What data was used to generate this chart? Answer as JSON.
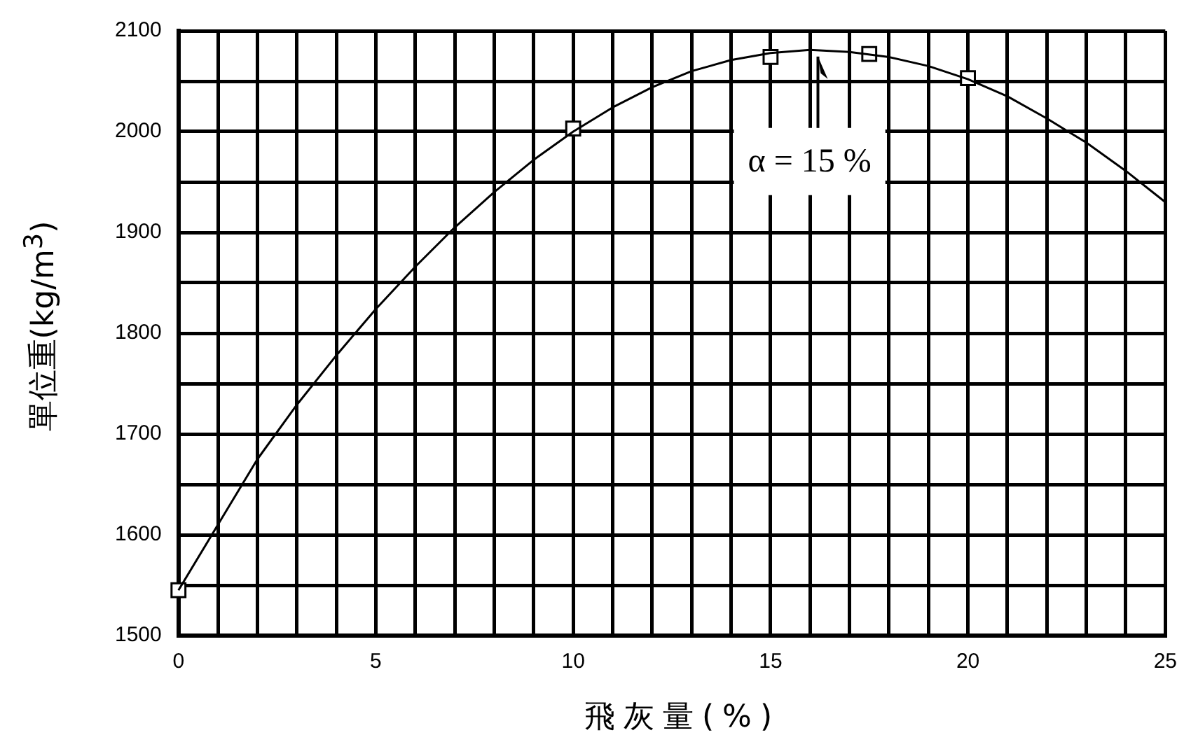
{
  "chart_data": {
    "type": "line",
    "xlabel": "飛灰量(%)",
    "ylabel": "單位重(kg/m$^{3}$)",
    "xlim": [
      0,
      25
    ],
    "ylim": [
      1500,
      2100
    ],
    "xticks": [
      0,
      {
        "value": 1,
        "label": null
      },
      {
        "value": 2,
        "label": null
      },
      {
        "value": 3,
        "label": null
      },
      {
        "value": 4,
        "label": null
      },
      5,
      {
        "value": 6,
        "label": null
      },
      {
        "value": 7,
        "label": null
      },
      {
        "value": 8,
        "label": null
      },
      {
        "value": 9,
        "label": null
      },
      10,
      {
        "value": 11,
        "label": null
      },
      {
        "value": 12,
        "label": null
      },
      {
        "value": 13,
        "label": null
      },
      {
        "value": 14,
        "label": null
      },
      15,
      {
        "value": 16,
        "label": null
      },
      {
        "value": 17,
        "label": null
      },
      {
        "value": 18,
        "label": null
      },
      {
        "value": 19,
        "label": null
      },
      20,
      {
        "value": 21,
        "label": null
      },
      {
        "value": 22,
        "label": null
      },
      {
        "value": 23,
        "label": null
      },
      {
        "value": 24,
        "label": null
      },
      25
    ],
    "yticks": [
      1500,
      {
        "value": 1550,
        "label": null
      },
      1600,
      {
        "value": 1650,
        "label": null
      },
      1700,
      {
        "value": 1750,
        "label": null
      },
      1800,
      {
        "value": 1850,
        "label": null
      },
      1900,
      {
        "value": 1950,
        "label": null
      },
      2000,
      {
        "value": 2050,
        "label": null
      },
      2100
    ],
    "grid": true,
    "legend": false,
    "series": [
      {
        "color": "#000000",
        "marker": "none",
        "line_style": "solid",
        "x": [
          0,
          1,
          2,
          3,
          4,
          5,
          6,
          7,
          8,
          9,
          10,
          11,
          12,
          13,
          14,
          15,
          16,
          17,
          18,
          19,
          20,
          21,
          22,
          23,
          24,
          25
        ],
        "values": [
          1545,
          1610,
          1675,
          1729,
          1778,
          1824,
          1866,
          1905,
          1940,
          1972,
          2000,
          2024,
          2044,
          2060,
          2071,
          2078,
          2081,
          2079,
          2074,
          2065,
          2052,
          2035,
          2013,
          1989,
          1961,
          1930
        ]
      },
      {
        "type": "scatter",
        "color": "#000000",
        "marker": "square",
        "x": [
          0,
          10,
          15,
          17.5,
          20
        ],
        "values": [
          1545,
          2003,
          2074,
          2077,
          2053
        ]
      }
    ],
    "annotations": [
      {
        "text": "α = 15 %",
        "x": 16.2,
        "y": 2080
      }
    ]
  }
}
